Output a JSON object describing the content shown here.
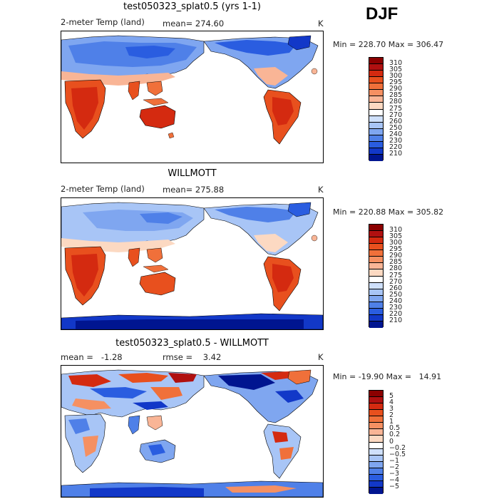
{
  "season_label": "DJF",
  "panels": [
    {
      "title": "test050323_splat0.5 (yrs 1-1)",
      "left_label": "2-meter Temp (land)",
      "middle_label": "mean= 274.60",
      "right_label": "K",
      "minmax": "Min = 228.70 Max = 306.47",
      "colorbar": {
        "ticks": [
          "310",
          "305",
          "300",
          "295",
          "290",
          "285",
          "280",
          "275",
          "270",
          "260",
          "250",
          "240",
          "230",
          "220",
          "210"
        ],
        "colors": [
          "#8b0000",
          "#b01010",
          "#d42a10",
          "#e8501e",
          "#f0703a",
          "#f59062",
          "#f9b596",
          "#fcd9c2",
          "#ffffff",
          "#cfe0fb",
          "#a8c5f6",
          "#7fa6f0",
          "#4f80e8",
          "#2a5de0",
          "#1238c8",
          "#001590"
        ]
      }
    },
    {
      "title": "WILLMOTT",
      "left_label": "2-meter Temp (land)",
      "middle_label": "mean= 275.88",
      "right_label": "K",
      "minmax": "Min = 220.88 Max = 305.82",
      "colorbar": {
        "ticks": [
          "310",
          "305",
          "300",
          "295",
          "290",
          "285",
          "280",
          "275",
          "270",
          "260",
          "250",
          "240",
          "230",
          "220",
          "210"
        ],
        "colors": [
          "#8b0000",
          "#b01010",
          "#d42a10",
          "#e8501e",
          "#f0703a",
          "#f59062",
          "#f9b596",
          "#fcd9c2",
          "#ffffff",
          "#cfe0fb",
          "#a8c5f6",
          "#7fa6f0",
          "#4f80e8",
          "#2a5de0",
          "#1238c8",
          "#001590"
        ]
      }
    },
    {
      "title": "test050323_splat0.5 - WILLMOTT",
      "left_label": "mean =   -1.28",
      "middle_label": "rmse =    3.42",
      "right_label": "K",
      "minmax": "Min = -19.90 Max =   14.91",
      "colorbar": {
        "ticks": [
          "5",
          "4",
          "3",
          "2",
          "1",
          "0.5",
          "0.2",
          "0",
          "−0.2",
          "−0.5",
          "−1",
          "−2",
          "−3",
          "−4",
          "−5"
        ],
        "colors": [
          "#8b0000",
          "#b01010",
          "#d42a10",
          "#e8501e",
          "#f0703a",
          "#f59062",
          "#f9b596",
          "#fcd9c2",
          "#ffffff",
          "#cfe0fb",
          "#a8c5f6",
          "#7fa6f0",
          "#4f80e8",
          "#2a5de0",
          "#1238c8",
          "#001590"
        ]
      }
    }
  ]
}
